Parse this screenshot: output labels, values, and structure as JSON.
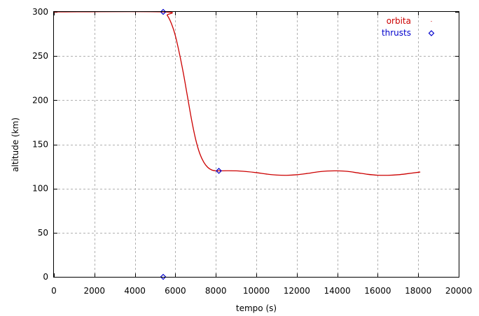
{
  "chart_data": {
    "type": "line",
    "title": "",
    "xlabel": "tempo (s)",
    "ylabel": "altitude (km)",
    "xlim": [
      0,
      20000
    ],
    "ylim": [
      0,
      300
    ],
    "xticks": [
      0,
      2000,
      4000,
      6000,
      8000,
      10000,
      12000,
      14000,
      16000,
      18000,
      20000
    ],
    "yticks": [
      0,
      50,
      100,
      150,
      200,
      250,
      300
    ],
    "grid": true,
    "legend_position": "top-right",
    "series": [
      {
        "name": "orbita",
        "kind": "line",
        "color": "#cc0000",
        "points": [
          [
            0,
            300
          ],
          [
            5400,
            300
          ],
          [
            5600,
            296
          ],
          [
            5800,
            287
          ],
          [
            6000,
            273
          ],
          [
            6200,
            253
          ],
          [
            6400,
            230
          ],
          [
            6600,
            204
          ],
          [
            6800,
            178
          ],
          [
            7000,
            156
          ],
          [
            7200,
            140
          ],
          [
            7400,
            130
          ],
          [
            7600,
            124
          ],
          [
            7800,
            121
          ],
          [
            8000,
            120
          ],
          [
            8150,
            120
          ],
          [
            8500,
            120.1
          ],
          [
            9000,
            120
          ],
          [
            9500,
            119.2
          ],
          [
            10000,
            118
          ],
          [
            10500,
            116.4
          ],
          [
            11000,
            115.3
          ],
          [
            11500,
            115
          ],
          [
            12000,
            115.6
          ],
          [
            12500,
            117
          ],
          [
            13000,
            118.7
          ],
          [
            13500,
            119.8
          ],
          [
            14000,
            120
          ],
          [
            14500,
            119.4
          ],
          [
            15000,
            117.8
          ],
          [
            15500,
            116.1
          ],
          [
            16000,
            115.1
          ],
          [
            16500,
            115
          ],
          [
            17000,
            115.6
          ],
          [
            17500,
            116.9
          ],
          [
            18000,
            118.4
          ],
          [
            18100,
            118.7
          ]
        ]
      },
      {
        "name": "thrusts",
        "kind": "points",
        "marker": "diamond",
        "color": "#0000cc",
        "points": [
          [
            5400,
            300
          ],
          [
            8150,
            120
          ],
          [
            5400,
            0
          ]
        ]
      }
    ]
  }
}
